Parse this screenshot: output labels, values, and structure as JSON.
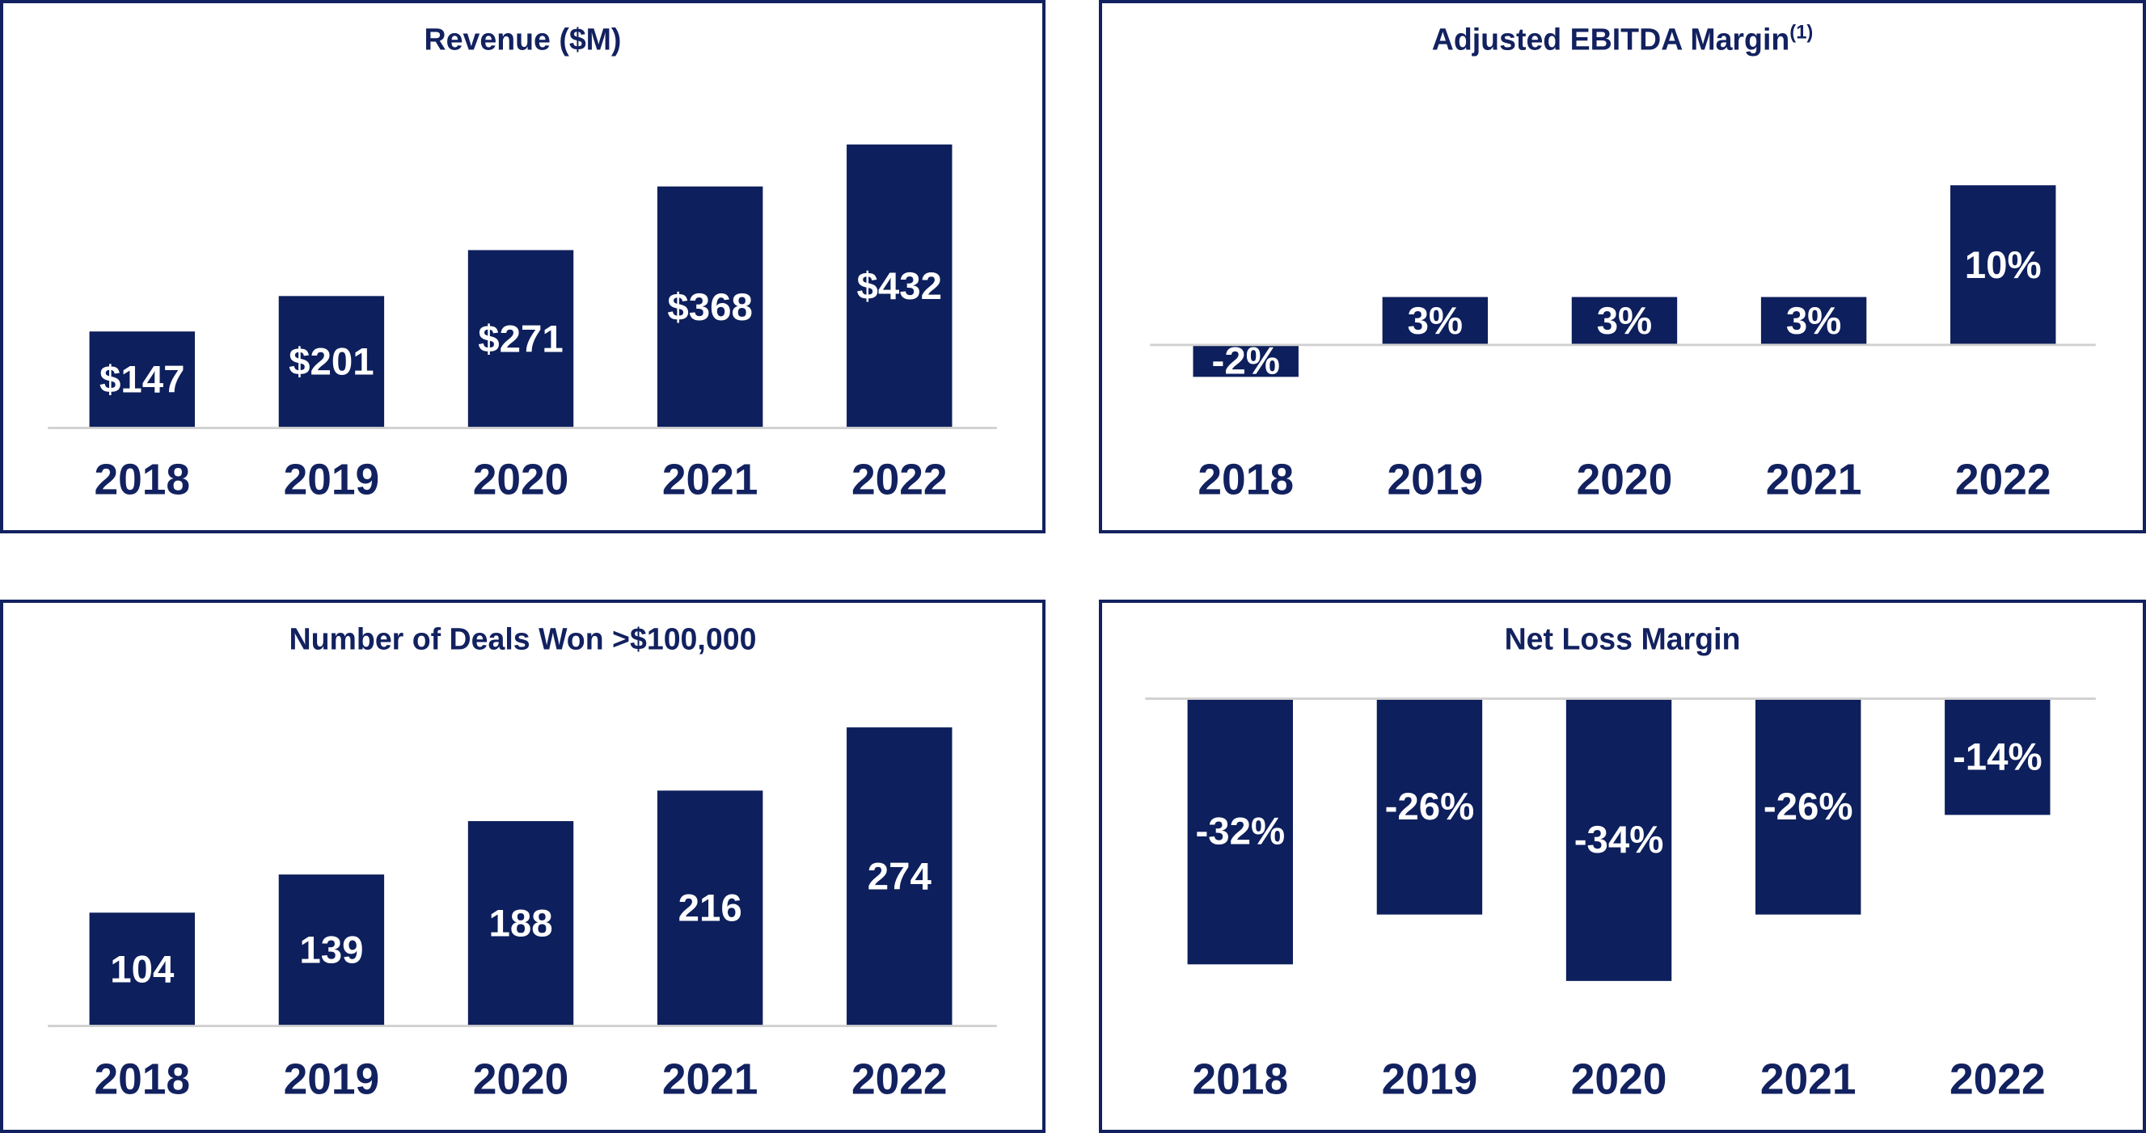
{
  "colors": {
    "bar": "#0d1f5c",
    "text": "#12215f",
    "axis": "#d0d0d0",
    "label": "#ffffff"
  },
  "chart_data": [
    {
      "type": "bar",
      "title": "Revenue ($M)",
      "title_superscript": "",
      "categories": [
        "2018",
        "2019",
        "2020",
        "2021",
        "2022"
      ],
      "values": [
        147,
        201,
        271,
        368,
        432
      ],
      "data_labels": [
        "$147",
        "$201",
        "$271",
        "$368",
        "$432"
      ],
      "ylim": [
        0,
        480
      ],
      "grid": false
    },
    {
      "type": "bar",
      "title": "Adjusted EBITDA Margin",
      "title_superscript": "(1)",
      "categories": [
        "2018",
        "2019",
        "2020",
        "2021",
        "2022"
      ],
      "values": [
        -2,
        3,
        3,
        3,
        10
      ],
      "data_labels": [
        "-2%",
        "3%",
        "3%",
        "3%",
        "10%"
      ],
      "ylim": [
        -5,
        12
      ],
      "grid": false
    },
    {
      "type": "bar",
      "title": "Number of Deals Won >$100,000",
      "title_superscript": "",
      "categories": [
        "2018",
        "2019",
        "2020",
        "2021",
        "2022"
      ],
      "values": [
        104,
        139,
        188,
        216,
        274
      ],
      "data_labels": [
        "104",
        "139",
        "188",
        "216",
        "274"
      ],
      "ylim": [
        0,
        300
      ],
      "grid": false
    },
    {
      "type": "bar",
      "title": "Net Loss Margin",
      "title_superscript": "",
      "categories": [
        "2018",
        "2019",
        "2020",
        "2021",
        "2022"
      ],
      "values": [
        -32,
        -26,
        -34,
        -26,
        -14
      ],
      "data_labels": [
        "-32%",
        "-26%",
        "-34%",
        "-26%",
        "-14%"
      ],
      "ylim": [
        -36,
        0
      ],
      "grid": false
    }
  ]
}
